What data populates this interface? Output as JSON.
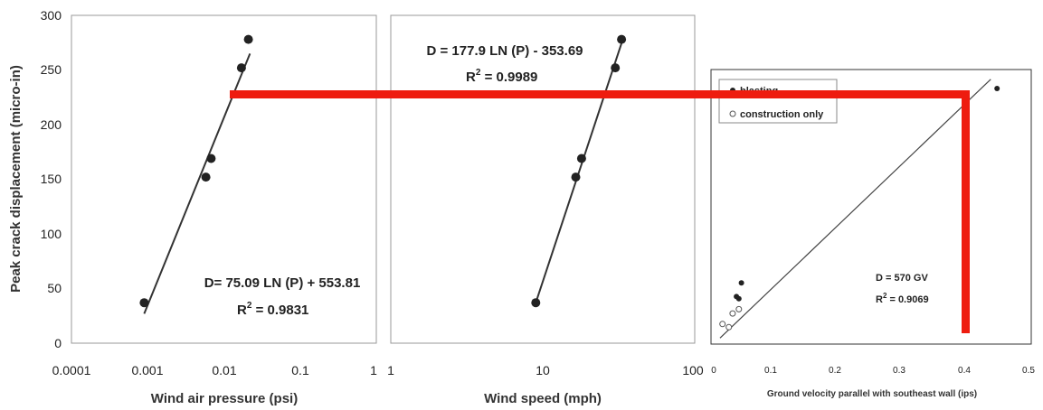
{
  "chart_data": [
    {
      "type": "scatter",
      "title": "",
      "xlabel": "Wind air pressure (psi)",
      "ylabel": "Peak crack displacement (micro-in)",
      "x_scale": "log",
      "xlim": [
        0.0001,
        1
      ],
      "ylim": [
        0,
        300
      ],
      "x_tick_labels": [
        "0.0001",
        "0.001",
        "0.01",
        "0.1",
        "1"
      ],
      "x_tick_values": [
        0.0001,
        0.001,
        0.01,
        0.1,
        1
      ],
      "y_tick_values": [
        0,
        50,
        100,
        150,
        200,
        250,
        300
      ],
      "y_tick_labels": [
        "0",
        "50",
        "100",
        "150",
        "200",
        "250",
        "300"
      ],
      "points": [
        [
          0.0009,
          37
        ],
        [
          0.0058,
          152
        ],
        [
          0.0068,
          169
        ],
        [
          0.017,
          252
        ],
        [
          0.021,
          278
        ]
      ],
      "fit_line": {
        "x": [
          0.0009,
          0.022
        ],
        "y": [
          27,
          265
        ]
      },
      "equation": "D= 75.09 LN (P) + 553.81",
      "r2_label": "R",
      "r2_sup": "2",
      "r2_value": " = 0.9831"
    },
    {
      "type": "scatter",
      "title": "",
      "xlabel": "Wind speed (mph)",
      "x_scale": "log",
      "xlim": [
        1,
        100
      ],
      "ylim": [
        0,
        300
      ],
      "x_tick_labels": [
        "1",
        "10",
        "100"
      ],
      "x_tick_values": [
        1,
        10,
        100
      ],
      "points": [
        [
          9,
          37
        ],
        [
          16.5,
          152
        ],
        [
          18,
          169
        ],
        [
          30,
          252
        ],
        [
          33,
          278
        ]
      ],
      "fit_line": {
        "x": [
          9,
          34
        ],
        "y": [
          37,
          280
        ]
      },
      "equation": "D = 177.9 LN (P) - 353.69",
      "r2_label": "R",
      "r2_sup": "2",
      "r2_value": " = 0.9989"
    },
    {
      "type": "scatter",
      "title": "",
      "xlabel": "Ground velocity parallel with southeast wall (ips)",
      "xlim": [
        0,
        0.5
      ],
      "ylim": [
        0,
        260
      ],
      "x_tick_values": [
        0,
        0.1,
        0.2,
        0.3,
        0.4,
        0.5
      ],
      "x_tick_labels": [
        "0",
        "0.1",
        "0.2",
        "0.3",
        "0.4",
        "0.5"
      ],
      "series": [
        {
          "name": "blasting",
          "marker": "filled",
          "points": [
            [
              0.036,
              45
            ],
            [
              0.04,
              43
            ],
            [
              0.044,
              58
            ],
            [
              0.45,
              242
            ]
          ]
        },
        {
          "name": "construction only",
          "marker": "open",
          "points": [
            [
              0.014,
              19
            ],
            [
              0.024,
              16
            ],
            [
              0.03,
              29
            ],
            [
              0.04,
              33
            ]
          ]
        }
      ],
      "fit_line": {
        "x": [
          0.01,
          0.44
        ],
        "y": [
          5.7,
          250.8
        ]
      },
      "legend_position": "top-left",
      "equation": "D = 570 GV",
      "r2_label": "R",
      "r2_sup": "2",
      "r2_value": " = 0.9069"
    }
  ],
  "overlay": {
    "color": "#ee1c0f"
  }
}
